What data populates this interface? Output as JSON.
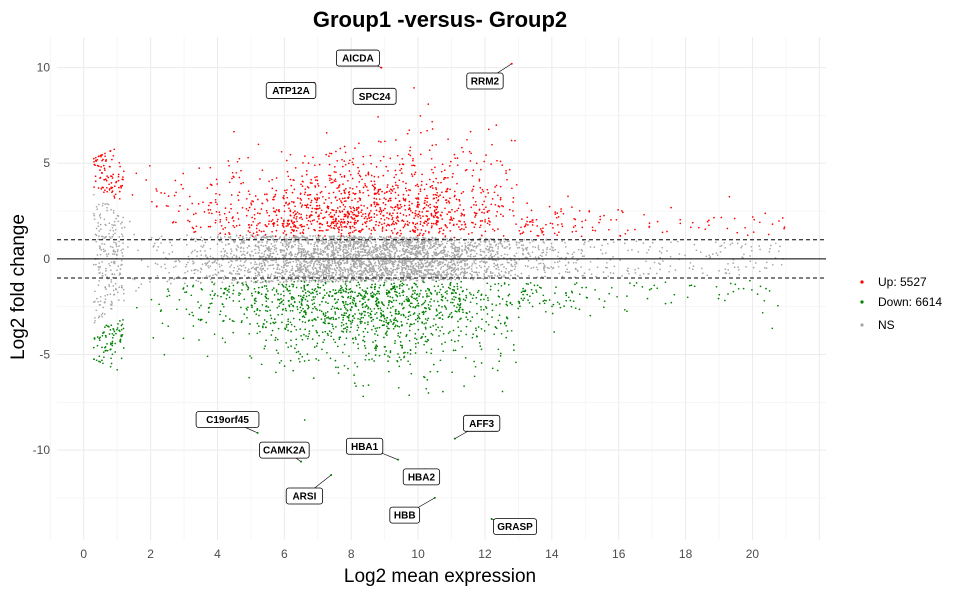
{
  "chart_data": {
    "type": "scatter",
    "title": "Group1 -versus- Group2",
    "xlabel": "Log2 mean expression",
    "ylabel": "Log2 fold change",
    "xlim": [
      -0.8,
      22.2
    ],
    "ylim": [
      -14.7,
      11.6
    ],
    "x_ticks": [
      0,
      2,
      4,
      6,
      8,
      10,
      12,
      14,
      16,
      18,
      20
    ],
    "y_ticks": [
      -10,
      -5,
      0,
      5,
      10
    ],
    "grid": true,
    "hlines": [
      {
        "y": 0,
        "style": "solid"
      },
      {
        "y": 1,
        "style": "dashed"
      },
      {
        "y": -1,
        "style": "dashed"
      }
    ],
    "legend": {
      "position": "right",
      "entries": [
        {
          "label": "Up: 5527",
          "color": "#ff0000"
        },
        {
          "label": "Down: 6614",
          "color": "#008000"
        },
        {
          "label": "NS",
          "color": "#a6a6a6"
        }
      ]
    },
    "series": [
      {
        "name": "Up: 5527",
        "color": "#ff0000",
        "count": 5527
      },
      {
        "name": "Down: 6614",
        "color": "#008000",
        "count": 6614
      },
      {
        "name": "NS",
        "color": "#a6a6a6"
      }
    ],
    "labeled_genes": [
      {
        "gene": "AICDA",
        "x": 8.9,
        "y": 10.0,
        "label_at": [
          8.2,
          10.5
        ]
      },
      {
        "gene": "RRM2",
        "x": 12.8,
        "y": 10.2,
        "label_at": [
          12.0,
          9.3
        ]
      },
      {
        "gene": "ATP12A",
        "x": 6.9,
        "y": 9.2,
        "label_at": [
          6.2,
          8.8
        ]
      },
      {
        "gene": "SPC24",
        "x": 9.2,
        "y": 8.6,
        "label_at": [
          8.7,
          8.5
        ]
      },
      {
        "gene": "C19orf45",
        "x": 5.2,
        "y": -9.1,
        "label_at": [
          4.3,
          -8.4
        ]
      },
      {
        "gene": "AFF3",
        "x": 11.1,
        "y": -9.4,
        "label_at": [
          11.9,
          -8.6
        ]
      },
      {
        "gene": "HBA1",
        "x": 9.4,
        "y": -10.5,
        "label_at": [
          8.4,
          -9.8
        ]
      },
      {
        "gene": "CAMK2A",
        "x": 6.5,
        "y": -10.6,
        "label_at": [
          6.0,
          -10.0
        ]
      },
      {
        "gene": "HBA2",
        "x": 10.2,
        "y": -11.0,
        "label_at": [
          10.1,
          -11.4
        ]
      },
      {
        "gene": "ARSI",
        "x": 7.4,
        "y": -11.3,
        "label_at": [
          6.6,
          -12.4
        ]
      },
      {
        "gene": "HBB",
        "x": 10.5,
        "y": -12.5,
        "label_at": [
          9.6,
          -13.4
        ]
      },
      {
        "gene": "GRASP",
        "x": 12.2,
        "y": -13.6,
        "label_at": [
          12.9,
          -14.0
        ]
      }
    ]
  }
}
